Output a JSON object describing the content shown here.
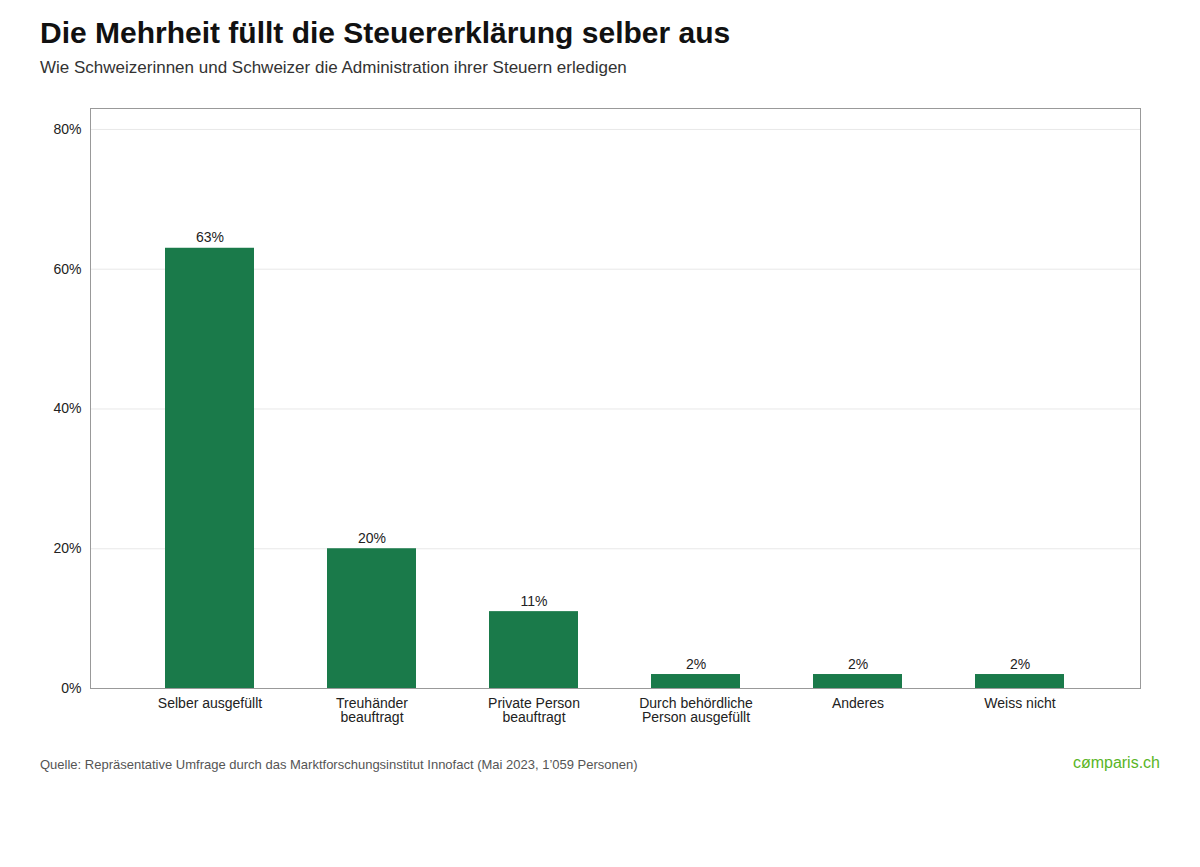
{
  "chart_data": {
    "type": "bar",
    "title": "Die Mehrheit füllt die Steuererklärung selber aus",
    "subtitle": "Wie Schweizerinnen und Schweizer die Administration ihrer Steuern erledigen",
    "categories": [
      "Selber ausgefüllt",
      "Treuhänder\nbeauftragt",
      "Private Person\nbeauftragt",
      "Durch behördliche\nPerson ausgefüllt",
      "Anderes",
      "Weiss nicht"
    ],
    "values": [
      63,
      20,
      11,
      2,
      2,
      2
    ],
    "value_labels": [
      "63%",
      "20%",
      "11%",
      "2%",
      "2%",
      "2%"
    ],
    "data_labels": true,
    "color": "#1a7a4a",
    "ylim": [
      0,
      83
    ],
    "yticks": [
      {
        "value": 0,
        "label": "0%"
      },
      {
        "value": 20,
        "label": "20%"
      },
      {
        "value": 40,
        "label": "40%"
      },
      {
        "value": 60,
        "label": "60%"
      },
      {
        "value": 80,
        "label": "80%"
      }
    ],
    "grid": true,
    "caption": "Quelle: Repräsentative Umfrage durch das Marktforschungsinstitut Innofact (Mai 2023, 1’059 Personen)",
    "annotations": [
      {
        "text": "cømparis.ch",
        "color": "#5ab526"
      }
    ]
  }
}
